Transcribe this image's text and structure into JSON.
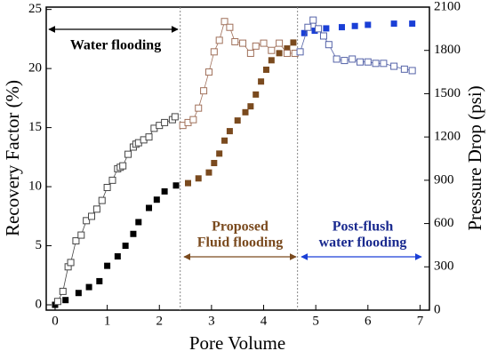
{
  "chart_data": {
    "type": "scatter",
    "xlabel": "Pore Volume",
    "ylabel": "Recovery Factor (%)",
    "y2label": "Pressure Drop (psi)",
    "xlim": [
      -0.17,
      7.18
    ],
    "xticks": [
      0,
      1,
      2,
      3,
      4,
      5,
      6,
      7
    ],
    "ylim": [
      -0.45,
      25.2
    ],
    "yticks": [
      0,
      5,
      10,
      15,
      20,
      25
    ],
    "y2lim": [
      0,
      2100
    ],
    "y2ticks": [
      0,
      300,
      600,
      900,
      1200,
      1500,
      1800,
      2100
    ],
    "vlines": [
      2.4,
      4.65
    ],
    "annotations": [
      "Water flooding",
      "Proposed",
      "Fluid flooding",
      "Post-flush",
      "water flooding"
    ],
    "series": [
      {
        "color": "#000000",
        "marker": "filled",
        "axis": "y",
        "x": [
          0,
          0.2,
          0.45,
          0.65,
          0.85,
          1.0,
          1.2,
          1.35,
          1.5,
          1.6,
          1.8,
          1.95,
          2.1,
          2.32
        ],
        "values": [
          0,
          0.4,
          1.0,
          1.5,
          2.0,
          3.3,
          4.1,
          5.0,
          6.0,
          7.0,
          8.2,
          8.9,
          9.6,
          10.1
        ]
      },
      {
        "color": "#7a4a1e",
        "marker": "filled",
        "axis": "y",
        "x": [
          2.55,
          2.75,
          2.95,
          3.05,
          3.15,
          3.25,
          3.35,
          3.5,
          3.65,
          3.75,
          3.85,
          3.95,
          4.05,
          4.15,
          4.3,
          4.45,
          4.57
        ],
        "values": [
          10.3,
          10.7,
          11.2,
          12.0,
          12.8,
          13.9,
          14.7,
          15.6,
          16.3,
          16.8,
          17.8,
          18.9,
          19.9,
          20.7,
          21.3,
          21.7,
          22.2
        ]
      },
      {
        "color": "#1a3fd6",
        "marker": "filled",
        "axis": "y",
        "x": [
          4.78,
          4.98,
          5.2,
          5.5,
          5.75,
          6.0,
          6.5,
          6.85
        ],
        "values": [
          23.0,
          23.2,
          23.4,
          23.5,
          23.6,
          23.7,
          23.8,
          23.8
        ]
      },
      {
        "color": "#444444",
        "marker": "open",
        "axis": "y2",
        "x": [
          0.05,
          0.15,
          0.25,
          0.3,
          0.4,
          0.5,
          0.6,
          0.7,
          0.8,
          0.9,
          1.0,
          1.1,
          1.2,
          1.25,
          1.3,
          1.4,
          1.5,
          1.55,
          1.6,
          1.7,
          1.8,
          1.9,
          2.0,
          2.1,
          2.25,
          2.3
        ],
        "values": [
          60,
          130,
          300,
          330,
          480,
          520,
          620,
          650,
          700,
          760,
          850,
          900,
          980,
          990,
          1000,
          1080,
          1130,
          1150,
          1160,
          1180,
          1200,
          1260,
          1280,
          1300,
          1320,
          1340
        ]
      },
      {
        "color": "#a0705a",
        "marker": "open",
        "axis": "y2",
        "x": [
          2.45,
          2.55,
          2.65,
          2.75,
          2.85,
          2.95,
          3.05,
          3.15,
          3.25,
          3.35,
          3.45,
          3.6,
          3.75,
          3.85,
          4.0,
          4.15,
          4.3,
          4.45,
          4.6
        ],
        "values": [
          1280,
          1300,
          1320,
          1400,
          1520,
          1650,
          1790,
          1870,
          2000,
          1960,
          1860,
          1850,
          1780,
          1830,
          1850,
          1800,
          1850,
          1780,
          1780
        ]
      },
      {
        "color": "#5563a8",
        "marker": "open",
        "axis": "y2",
        "x": [
          4.7,
          4.85,
          4.95,
          5.05,
          5.15,
          5.25,
          5.4,
          5.55,
          5.7,
          5.85,
          6.0,
          6.15,
          6.3,
          6.5,
          6.7,
          6.85
        ],
        "values": [
          1790,
          1960,
          2010,
          1950,
          1900,
          1840,
          1740,
          1730,
          1740,
          1720,
          1720,
          1710,
          1710,
          1690,
          1670,
          1660
        ]
      }
    ]
  }
}
